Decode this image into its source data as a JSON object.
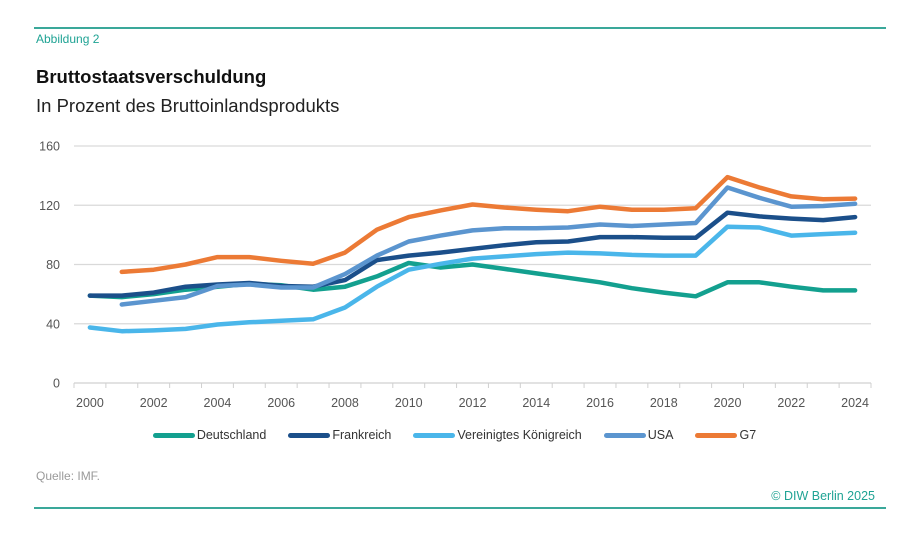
{
  "header": {
    "figure_label": "Abbildung 2",
    "title": "Bruttostaatsverschuldung",
    "subtitle": "In Prozent des Bruttoinlandsprodukts"
  },
  "footer": {
    "source": "Quelle: IMF.",
    "copyright": "© DIW Berlin 2025"
  },
  "colors": {
    "accent": "#1fa394",
    "rule": "#3aa89a",
    "grid": "#d9d9d9"
  },
  "chart_data": {
    "type": "line",
    "title": "Bruttostaatsverschuldung",
    "subtitle": "In Prozent des Bruttoinlandsprodukts",
    "xlabel": "",
    "ylabel": "",
    "ylim": [
      0,
      160
    ],
    "yticks": [
      0,
      40,
      80,
      120,
      160
    ],
    "grid": true,
    "legend_position": "bottom",
    "x": [
      2000,
      2001,
      2002,
      2003,
      2004,
      2005,
      2006,
      2007,
      2008,
      2009,
      2010,
      2011,
      2012,
      2013,
      2014,
      2015,
      2016,
      2017,
      2018,
      2019,
      2020,
      2021,
      2022,
      2023,
      2024
    ],
    "xtick_labels": [
      "2000",
      "2002",
      "2004",
      "2006",
      "2008",
      "2010",
      "2012",
      "2014",
      "2016",
      "2018",
      "2020",
      "2022",
      "2024"
    ],
    "series": [
      {
        "name": "Deutschland",
        "color": "#13a08f",
        "values": [
          59,
          58,
          60,
          63,
          65,
          67,
          66,
          63,
          65,
          72,
          81,
          78,
          80,
          77,
          74,
          71,
          68,
          64,
          61,
          58.5,
          68,
          68,
          65,
          62.5,
          62.5
        ]
      },
      {
        "name": "Frankreich",
        "color": "#1b4f8a",
        "values": [
          59,
          59,
          61,
          65,
          66.5,
          67.5,
          65.5,
          65,
          69.5,
          83,
          86,
          88,
          90.5,
          93,
          95,
          95.5,
          98.5,
          98.5,
          98,
          98,
          115,
          112.5,
          111,
          110,
          112
        ]
      },
      {
        "name": "Vereinigtes Königreich",
        "color": "#4ab6ea",
        "values": [
          37.5,
          35,
          35.5,
          36.5,
          39.5,
          41,
          42,
          43,
          51,
          65,
          76.5,
          80.5,
          84,
          85.5,
          87,
          88,
          87.5,
          86.5,
          86,
          86,
          105.5,
          105,
          99.5,
          100.5,
          101.5
        ]
      },
      {
        "name": "USA",
        "color": "#5b95cf",
        "values": [
          null,
          53,
          55.5,
          58,
          65.5,
          66.5,
          64.5,
          64.5,
          73.5,
          86,
          95.5,
          99.5,
          103,
          104.5,
          104.5,
          105,
          107,
          106,
          107,
          108,
          132,
          125,
          119,
          119.5,
          121
        ]
      },
      {
        "name": "G7",
        "color": "#ec7a35",
        "values": [
          null,
          75,
          76.5,
          80,
          85,
          85,
          82.5,
          80.5,
          88,
          103.5,
          112,
          116.5,
          120.5,
          118.5,
          117,
          116,
          119,
          117,
          117,
          118,
          139,
          132,
          126,
          124,
          124.5
        ]
      }
    ]
  }
}
